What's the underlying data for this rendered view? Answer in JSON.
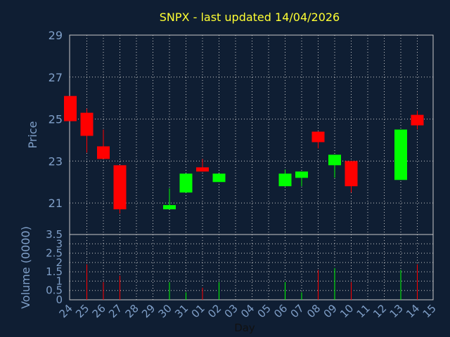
{
  "chart_data": {
    "type": "candlestick",
    "title": "SNPX - last updated 14/04/2026",
    "xlabel": "Day",
    "price_panel": {
      "ylabel": "Price",
      "ylim": [
        19.5,
        29
      ],
      "yticks": [
        "21",
        "23",
        "25",
        "27",
        "29"
      ],
      "grid": true
    },
    "volume_panel": {
      "ylabel": "Volume (0000)",
      "ylim": [
        0,
        3.5
      ],
      "yticks": [
        "0",
        "0.5",
        "1",
        "1.5",
        "2",
        "2.5",
        "3",
        "3.5"
      ],
      "grid": true
    },
    "x_ticks": [
      "24",
      "25",
      "26",
      "27",
      "28",
      "29",
      "30",
      "31",
      "01",
      "02",
      "03",
      "04",
      "05",
      "06",
      "07",
      "08",
      "09",
      "10",
      "11",
      "12",
      "13",
      "14",
      "15"
    ],
    "candles": [
      {
        "day": "24",
        "open": 26.1,
        "high": 26.1,
        "low": 24.9,
        "close": 24.9
      },
      {
        "day": "25",
        "open": 25.3,
        "high": 25.5,
        "low": 23.4,
        "close": 24.2
      },
      {
        "day": "26",
        "open": 23.7,
        "high": 24.5,
        "low": 23.1,
        "close": 23.1
      },
      {
        "day": "27",
        "open": 22.8,
        "high": 22.8,
        "low": 20.5,
        "close": 20.7
      },
      {
        "day": "30",
        "open": 20.7,
        "high": 21.7,
        "low": 20.7,
        "close": 20.9
      },
      {
        "day": "31",
        "open": 21.5,
        "high": 22.4,
        "low": 21.5,
        "close": 22.4
      },
      {
        "day": "01",
        "open": 22.7,
        "high": 23.1,
        "low": 22.5,
        "close": 22.5
      },
      {
        "day": "02",
        "open": 22.0,
        "high": 22.4,
        "low": 22.0,
        "close": 22.4
      },
      {
        "day": "06",
        "open": 21.8,
        "high": 22.6,
        "low": 21.8,
        "close": 22.4
      },
      {
        "day": "07",
        "open": 22.2,
        "high": 22.5,
        "low": 21.8,
        "close": 22.5
      },
      {
        "day": "08",
        "open": 24.4,
        "high": 24.4,
        "low": 23.6,
        "close": 23.9
      },
      {
        "day": "09",
        "open": 22.8,
        "high": 23.3,
        "low": 22.2,
        "close": 23.3
      },
      {
        "day": "10",
        "open": 23.0,
        "high": 23.0,
        "low": 21.5,
        "close": 21.8
      },
      {
        "day": "13",
        "open": 22.1,
        "high": 24.5,
        "low": 22.1,
        "close": 24.5
      },
      {
        "day": "14",
        "open": 25.2,
        "high": 25.4,
        "low": 24.5,
        "close": 24.7
      }
    ],
    "volume": [
      {
        "day": "25",
        "value": 1.9
      },
      {
        "day": "26",
        "value": 0.95
      },
      {
        "day": "27",
        "value": 1.3
      },
      {
        "day": "30",
        "value": 0.95
      },
      {
        "day": "31",
        "value": 0.4
      },
      {
        "day": "01",
        "value": 0.65
      },
      {
        "day": "02",
        "value": 0.95
      },
      {
        "day": "06",
        "value": 0.95
      },
      {
        "day": "07",
        "value": 0.4
      },
      {
        "day": "08",
        "value": 1.6
      },
      {
        "day": "09",
        "value": 1.7
      },
      {
        "day": "10",
        "value": 0.95
      },
      {
        "day": "13",
        "value": 1.6
      },
      {
        "day": "14",
        "value": 1.9
      }
    ],
    "colors": {
      "background": "#0f1e33",
      "up": "#00ff00",
      "down": "#ff0000",
      "grid": "#c8c8c8",
      "axis_text": "#7f9fc8",
      "title": "#ffff33"
    }
  }
}
